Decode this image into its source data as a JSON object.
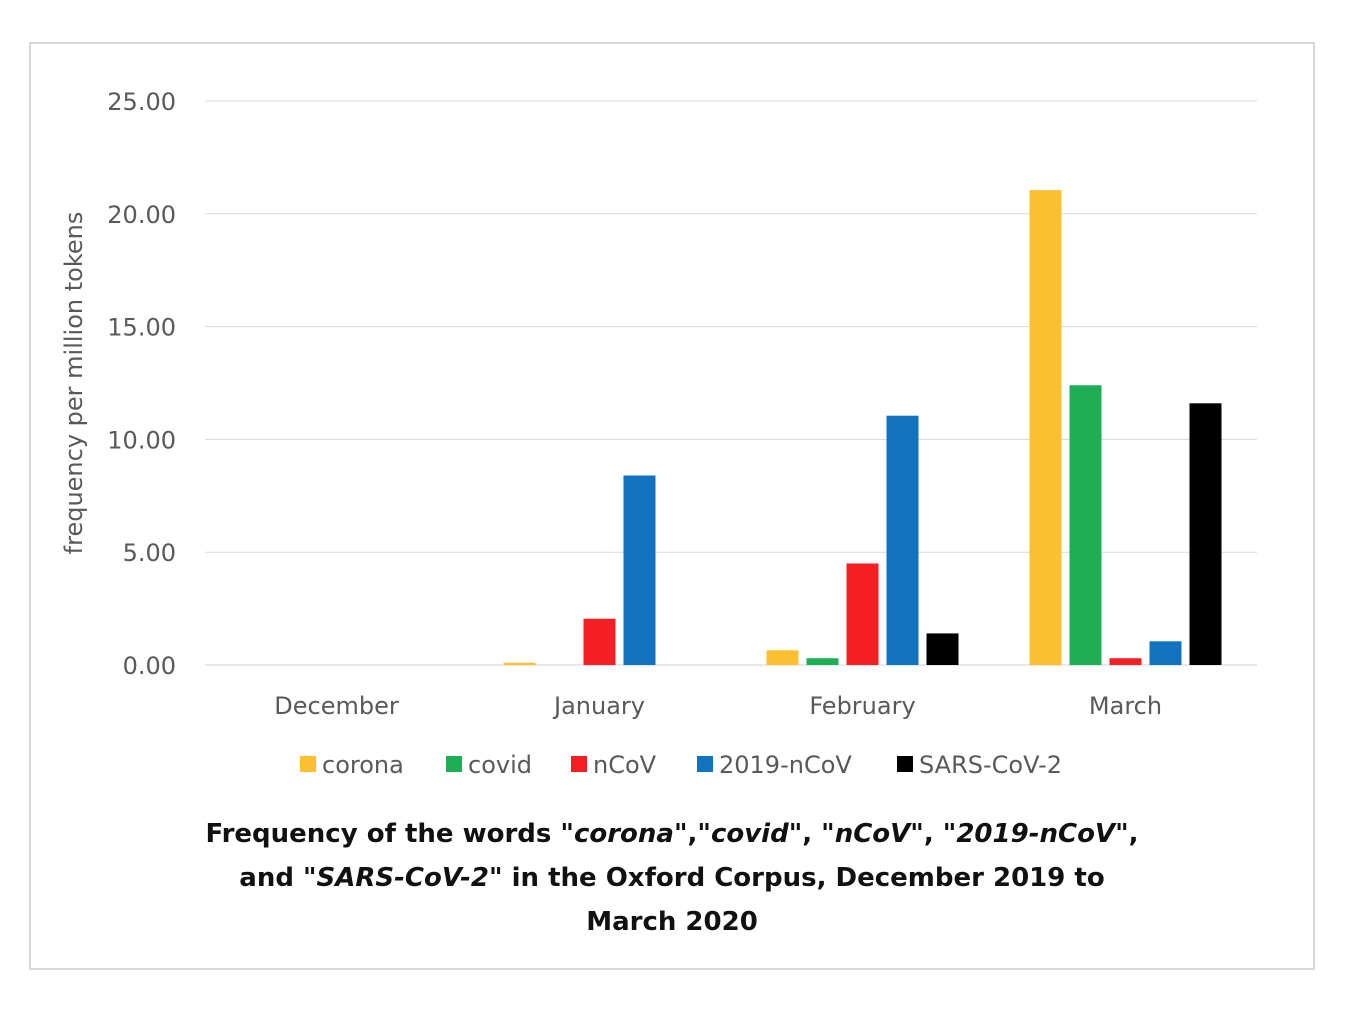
{
  "chart_data": {
    "type": "bar",
    "categories": [
      "December",
      "January",
      "February",
      "March"
    ],
    "series": [
      {
        "name": "corona",
        "color": "#FBBF2F",
        "values": [
          0.0,
          0.1,
          0.65,
          21.05
        ]
      },
      {
        "name": "covid",
        "color": "#1FAE54",
        "values": [
          0.0,
          0.0,
          0.3,
          12.4
        ]
      },
      {
        "name": "nCoV",
        "color": "#F41F22",
        "values": [
          0.0,
          2.05,
          4.5,
          0.3
        ]
      },
      {
        "name": "2019-nCoV",
        "color": "#1172C0",
        "values": [
          0.0,
          8.4,
          11.05,
          1.05
        ]
      },
      {
        "name": "SARS-CoV-2",
        "color": "#000000",
        "values": [
          0.0,
          0.0,
          1.4,
          11.6
        ]
      }
    ],
    "ylabel": "frequency per million tokens",
    "ylim": [
      0,
      25
    ],
    "yticks": [
      "0.00",
      "5.00",
      "10.00",
      "15.00",
      "20.00",
      "25.00"
    ],
    "ytick_values": [
      0,
      5,
      10,
      15,
      20,
      25
    ],
    "grid": true,
    "legend_position": "bottom"
  },
  "caption": {
    "line1_a": "Frequency of the words \"",
    "w1": "corona",
    "sep1": "\",\"",
    "w2": "covid",
    "sep2": "\", \"",
    "w3": "nCoV",
    "sep3": "\", \"",
    "w4": "2019-nCoV",
    "line1_end": "\",",
    "line2_a": "and \"",
    "w5": "SARS-CoV-2",
    "line2_b": "\" in the Oxford Corpus, December 2019 to",
    "line3": "March 2020"
  }
}
